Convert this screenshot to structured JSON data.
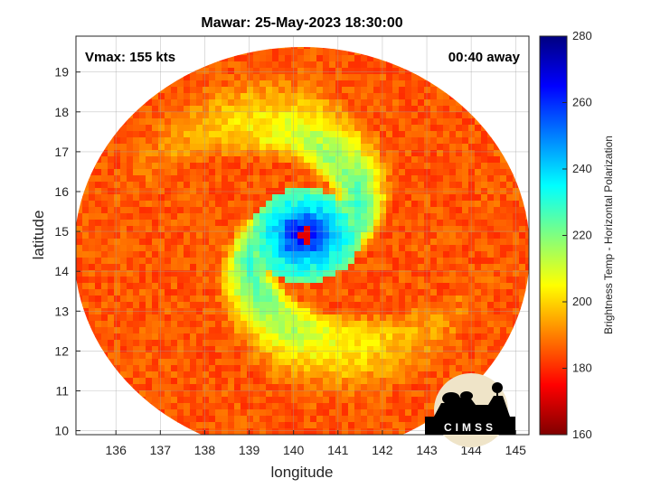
{
  "chart_data": {
    "type": "heatmap",
    "title": "Mawar: 25-May-2023 18:30:00",
    "xlabel": "longitude",
    "ylabel": "latitude",
    "xlim": [
      135.1,
      145.3
    ],
    "ylim": [
      9.9,
      19.9
    ],
    "xticks": [
      136,
      137,
      138,
      139,
      140,
      141,
      142,
      143,
      144,
      145
    ],
    "yticks": [
      10,
      11,
      12,
      13,
      14,
      15,
      16,
      17,
      18,
      19
    ],
    "grid": true,
    "annotations": {
      "vmax": "Vmax: 155 kts",
      "time_away": "00:40 away"
    },
    "storm_center": {
      "lon": 140.25,
      "lat": 14.9
    },
    "colorbar": {
      "label": "Brightness Temp - Horizontal Polarization",
      "min": 160,
      "max": 280,
      "ticks": [
        160,
        180,
        200,
        220,
        240,
        260,
        280
      ],
      "colormap": "jet"
    },
    "logo": "CIMSS"
  }
}
